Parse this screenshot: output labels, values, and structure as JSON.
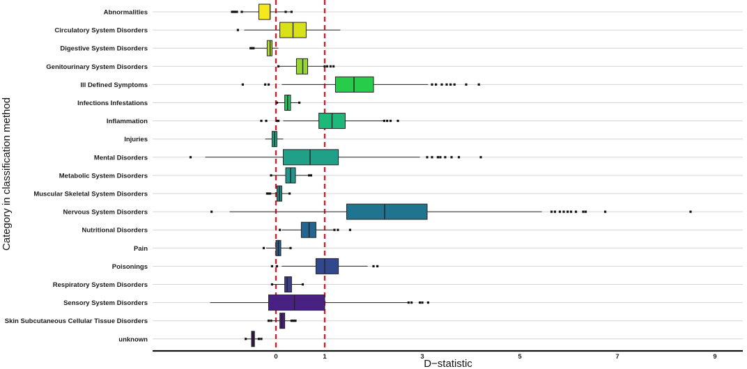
{
  "chart_data": {
    "type": "boxplot",
    "orientation": "horizontal",
    "xlabel": "D−statistic",
    "ylabel": "Category in classification method",
    "xlim": [
      -2.5,
      9.6
    ],
    "xticks": [
      0,
      1,
      3,
      5,
      7,
      9
    ],
    "reference_lines": [
      0,
      1
    ],
    "reference_line_color": "#e8101a",
    "grid": "horizontal",
    "categories": [
      {
        "name": "Abnormalities",
        "color": "#f5e81d",
        "q1": -0.35,
        "median": -0.12,
        "q3": -0.12,
        "wl": -0.7,
        "wh": 0.32,
        "outliers": [
          -0.9,
          -0.87,
          -0.84,
          -0.8,
          -0.7,
          0.2,
          0.32
        ]
      },
      {
        "name": "Circulatory System Disorders",
        "color": "#d9e11b",
        "q1": 0.08,
        "median": 0.35,
        "q3": 0.62,
        "wl": -0.65,
        "wh": 1.32,
        "outliers": [
          -0.78
        ]
      },
      {
        "name": "Digestive System Disorders",
        "color": "#b5dc2a",
        "q1": -0.18,
        "median": -0.12,
        "q3": -0.08,
        "wl": -0.45,
        "wh": 0.05,
        "outliers": [
          -0.52,
          -0.49,
          -0.46
        ]
      },
      {
        "name": "Genitourinary System Disorders",
        "color": "#97d631",
        "q1": 0.42,
        "median": 0.55,
        "q3": 0.65,
        "wl": 0.05,
        "wh": 1.0,
        "outliers": [
          0.05,
          1.0,
          1.05,
          1.12,
          1.18
        ]
      },
      {
        "name": "Ill Defined Symptoms",
        "color": "#27cc4a",
        "q1": 1.22,
        "median": 1.6,
        "q3": 2.0,
        "wl": 0.12,
        "wh": 3.12,
        "outliers": [
          -0.68,
          -0.22,
          -0.15,
          3.2,
          3.28,
          3.4,
          3.5,
          3.58,
          3.66,
          3.9,
          4.16
        ]
      },
      {
        "name": "Infections Infestations",
        "color": "#22c25d",
        "q1": 0.18,
        "median": 0.24,
        "q3": 0.3,
        "wl": 0.02,
        "wh": 0.48,
        "outliers": [
          0.02,
          0.48
        ]
      },
      {
        "name": "Inflammation",
        "color": "#1db87a",
        "q1": 0.88,
        "median": 1.15,
        "q3": 1.42,
        "wl": 0.15,
        "wh": 2.22,
        "outliers": [
          -0.3,
          -0.2,
          0.02,
          0.05,
          2.22,
          2.28,
          2.35,
          2.5
        ]
      },
      {
        "name": "Injuries",
        "color": "#21a682",
        "q1": -0.08,
        "median": -0.03,
        "q3": 0.02,
        "wl": -0.22,
        "wh": 0.15,
        "outliers": []
      },
      {
        "name": "Mental Disorders",
        "color": "#21a088",
        "q1": 0.15,
        "median": 0.7,
        "q3": 1.28,
        "wl": -1.45,
        "wh": 2.95,
        "outliers": [
          -1.75,
          3.1,
          3.2,
          3.32,
          3.37,
          3.47,
          3.6,
          3.75,
          4.2
        ]
      },
      {
        "name": "Metabolic System Disorders",
        "color": "#21958c",
        "q1": 0.2,
        "median": 0.3,
        "q3": 0.4,
        "wl": -0.1,
        "wh": 0.72,
        "outliers": [
          -0.1,
          0.68,
          0.72
        ]
      },
      {
        "name": "Muscular Skeletal System Disorders",
        "color": "#238b8c",
        "q1": 0.02,
        "median": 0.07,
        "q3": 0.12,
        "wl": -0.2,
        "wh": 0.28,
        "outliers": [
          -0.18,
          -0.15,
          -0.12,
          0.28
        ]
      },
      {
        "name": "Nervous System Disorders",
        "color": "#21748f",
        "q1": 1.45,
        "median": 2.23,
        "q3": 3.1,
        "wl": -0.95,
        "wh": 5.45,
        "outliers": [
          -1.32,
          5.65,
          5.72,
          5.82,
          5.9,
          5.98,
          6.05,
          6.15,
          6.3,
          6.35,
          6.75,
          8.5
        ]
      },
      {
        "name": "Nutritional Disorders",
        "color": "#256690",
        "q1": 0.52,
        "median": 0.68,
        "q3": 0.82,
        "wl": 0.12,
        "wh": 1.2,
        "outliers": [
          0.08,
          1.2,
          1.27,
          1.52
        ]
      },
      {
        "name": "Pain",
        "color": "#2b5b8c",
        "q1": 0.0,
        "median": 0.05,
        "q3": 0.1,
        "wl": -0.2,
        "wh": 0.3,
        "outliers": [
          -0.25,
          0.3
        ]
      },
      {
        "name": "Poisonings",
        "color": "#31498c",
        "q1": 0.82,
        "median": 1.0,
        "q3": 1.28,
        "wl": 0.12,
        "wh": 1.88,
        "outliers": [
          -0.08,
          0.02,
          2.0,
          2.08
        ]
      },
      {
        "name": "Respiratory System Disorders",
        "color": "#3c3d8a",
        "q1": 0.18,
        "median": 0.23,
        "q3": 0.32,
        "wl": -0.08,
        "wh": 0.55,
        "outliers": [
          -0.08,
          0.55
        ]
      },
      {
        "name": "Sensory System Disorders",
        "color": "#492182",
        "q1": -0.15,
        "median": 0.38,
        "q3": 1.0,
        "wl": -1.35,
        "wh": 2.7,
        "outliers": [
          2.72,
          2.78,
          2.95,
          3.0,
          3.12
        ]
      },
      {
        "name": "Skin Subcutaneous Cellular Tissue Disorders",
        "color": "#461c7a",
        "q1": 0.08,
        "median": 0.12,
        "q3": 0.18,
        "wl": -0.12,
        "wh": 0.4,
        "outliers": [
          -0.15,
          -0.1,
          0.32,
          0.36,
          0.4
        ]
      },
      {
        "name": "unknown",
        "color": "#3a0f5c",
        "q1": -0.5,
        "median": -0.47,
        "q3": -0.44,
        "wl": -0.6,
        "wh": -0.3,
        "outliers": [
          -0.62,
          -0.35,
          -0.3
        ]
      }
    ]
  }
}
